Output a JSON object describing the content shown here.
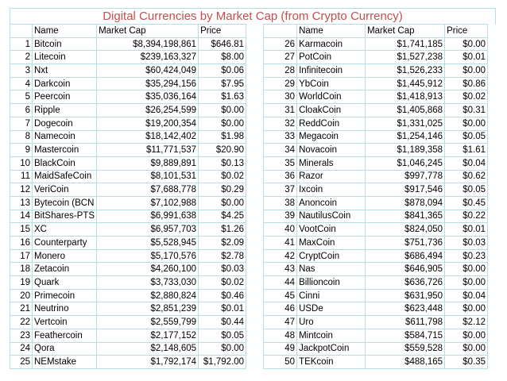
{
  "title": "Digital Currencies by Market Cap (from Crypto Currency)",
  "headers": {
    "name": "Name",
    "market_cap": "Market Cap",
    "price": "Price"
  },
  "left": [
    {
      "rank": "1",
      "name": "Bitcoin",
      "cap": "$8,394,198,861",
      "price": "$646.81"
    },
    {
      "rank": "2",
      "name": "Litecoin",
      "cap": "$239,163,327",
      "price": "$8.00"
    },
    {
      "rank": "3",
      "name": "Nxt",
      "cap": "$60,424,049",
      "price": "$0.06"
    },
    {
      "rank": "4",
      "name": "Darkcoin",
      "cap": "$35,294,156",
      "price": "$7.95"
    },
    {
      "rank": "5",
      "name": "Peercoin",
      "cap": "$35,036,164",
      "price": "$1.63"
    },
    {
      "rank": "6",
      "name": "Ripple",
      "cap": "$26,254,599",
      "price": "$0.00"
    },
    {
      "rank": "7",
      "name": "Dogecoin",
      "cap": "$19,200,354",
      "price": "$0.00"
    },
    {
      "rank": "8",
      "name": "Namecoin",
      "cap": "$18,142,402",
      "price": "$1.98"
    },
    {
      "rank": "9",
      "name": "Mastercoin",
      "cap": "$11,771,537",
      "price": "$20.90"
    },
    {
      "rank": "10",
      "name": "BlackCoin",
      "cap": "$9,889,891",
      "price": "$0.13"
    },
    {
      "rank": "11",
      "name": "MaidSafeCoin",
      "cap": "$8,101,531",
      "price": "$0.02"
    },
    {
      "rank": "12",
      "name": "VeriCoin",
      "cap": "$7,688,778",
      "price": "$0.29"
    },
    {
      "rank": "13",
      "name": "Bytecoin (BCN",
      "cap": "$7,102,988",
      "price": "$0.00"
    },
    {
      "rank": "14",
      "name": "BitShares-PTS",
      "cap": "$6,991,638",
      "price": "$4.25"
    },
    {
      "rank": "15",
      "name": "XC",
      "cap": "$6,957,703",
      "price": "$1.26"
    },
    {
      "rank": "16",
      "name": "Counterparty",
      "cap": "$5,528,945",
      "price": "$2.09"
    },
    {
      "rank": "17",
      "name": "Monero",
      "cap": "$5,170,576",
      "price": "$2.78"
    },
    {
      "rank": "18",
      "name": "Zetacoin",
      "cap": "$4,260,100",
      "price": "$0.03"
    },
    {
      "rank": "19",
      "name": "Quark",
      "cap": "$3,733,030",
      "price": "$0.02"
    },
    {
      "rank": "20",
      "name": "Primecoin",
      "cap": "$2,880,824",
      "price": "$0.46"
    },
    {
      "rank": "21",
      "name": "Neutrino",
      "cap": "$2,851,239",
      "price": "$0.01"
    },
    {
      "rank": "22",
      "name": "Vertcoin",
      "cap": "$2,559,799",
      "price": "$0.44"
    },
    {
      "rank": "23",
      "name": "Feathercoin",
      "cap": "$2,177,152",
      "price": "$0.05"
    },
    {
      "rank": "24",
      "name": "Qora",
      "cap": "$2,148,605",
      "price": "$0.00"
    },
    {
      "rank": "25",
      "name": "NEMstake",
      "cap": "$1,792,174",
      "price": "$1,792.00"
    }
  ],
  "right": [
    {
      "rank": "26",
      "name": "Karmacoin",
      "cap": "$1,741,185",
      "price": "$0.00"
    },
    {
      "rank": "27",
      "name": "PotCoin",
      "cap": "$1,527,238",
      "price": "$0.01"
    },
    {
      "rank": "28",
      "name": "Infinitecoin",
      "cap": "$1,526,233",
      "price": "$0.00"
    },
    {
      "rank": "29",
      "name": "YbCoin",
      "cap": "$1,445,912",
      "price": "$0.86"
    },
    {
      "rank": "30",
      "name": "WorldCoin",
      "cap": "$1,418,913",
      "price": "$0.02"
    },
    {
      "rank": "31",
      "name": "CloakCoin",
      "cap": "$1,405,868",
      "price": "$0.31"
    },
    {
      "rank": "32",
      "name": "ReddCoin",
      "cap": "$1,331,025",
      "price": "$0.00"
    },
    {
      "rank": "33",
      "name": "Megacoin",
      "cap": "$1,254,146",
      "price": "$0.05"
    },
    {
      "rank": "34",
      "name": "Novacoin",
      "cap": "$1,189,358",
      "price": "$1.61"
    },
    {
      "rank": "35",
      "name": "Minerals",
      "cap": "$1,046,245",
      "price": "$0.04"
    },
    {
      "rank": "36",
      "name": "Razor",
      "cap": "$997,778",
      "price": "$0.62"
    },
    {
      "rank": "37",
      "name": "Ixcoin",
      "cap": "$917,546",
      "price": "$0.05"
    },
    {
      "rank": "38",
      "name": "Anoncoin",
      "cap": "$878,094",
      "price": "$0.45"
    },
    {
      "rank": "39",
      "name": "NautilusCoin",
      "cap": "$841,365",
      "price": "$0.22"
    },
    {
      "rank": "40",
      "name": "VootCoin",
      "cap": "$824,050",
      "price": "$0.01"
    },
    {
      "rank": "41",
      "name": "MaxCoin",
      "cap": "$751,736",
      "price": "$0.03"
    },
    {
      "rank": "42",
      "name": "CryptCoin",
      "cap": "$686,494",
      "price": "$0.23"
    },
    {
      "rank": "43",
      "name": "Nas",
      "cap": "$646,905",
      "price": "$0.00"
    },
    {
      "rank": "44",
      "name": "Billioncoin",
      "cap": "$636,726",
      "price": "$0.00"
    },
    {
      "rank": "45",
      "name": "Cinni",
      "cap": "$631,950",
      "price": "$0.04"
    },
    {
      "rank": "46",
      "name": "USDe",
      "cap": "$623,448",
      "price": "$0.00"
    },
    {
      "rank": "47",
      "name": "Uro",
      "cap": "$611,798",
      "price": "$2.12"
    },
    {
      "rank": "48",
      "name": "Mintcoin",
      "cap": "$584,715",
      "price": "$0.00"
    },
    {
      "rank": "49",
      "name": "JackpotCoin",
      "cap": "$559,528",
      "price": "$0.00"
    },
    {
      "rank": "50",
      "name": "TEKcoin",
      "cap": "$488,165",
      "price": "$0.35"
    }
  ]
}
